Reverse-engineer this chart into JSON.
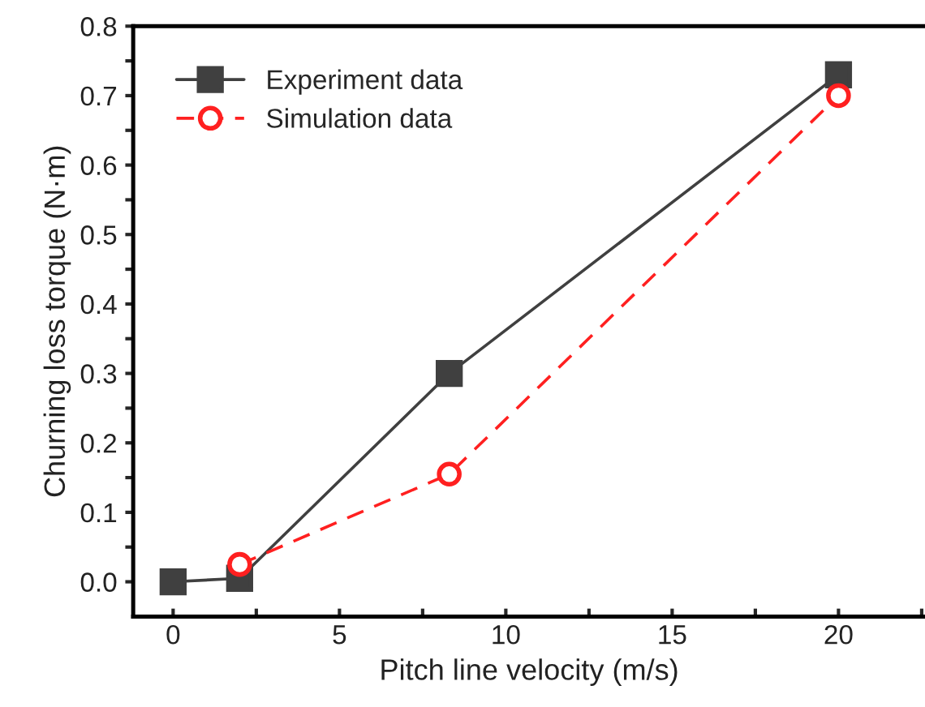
{
  "chart_data": {
    "type": "line",
    "xlabel": "Pitch line velocity (m/s)",
    "ylabel": "Churning loss torque (N·m)",
    "xlim": [
      -1.2,
      22.6
    ],
    "ylim": [
      -0.05,
      0.8
    ],
    "xticks": [
      0,
      {
        "value": 2.5,
        "label": null
      },
      5,
      {
        "value": 7.5,
        "label": null
      },
      10,
      {
        "value": 12.5,
        "label": null
      },
      15,
      {
        "value": 17.5,
        "label": null
      },
      20,
      {
        "value": 22.5,
        "label": null
      }
    ],
    "yticks": [
      {
        "value": 0,
        "label": "0.0"
      },
      {
        "value": 0.05,
        "label": null
      },
      0.1,
      {
        "value": 0.15,
        "label": null
      },
      0.2,
      {
        "value": 0.25,
        "label": null
      },
      0.3,
      {
        "value": 0.35,
        "label": null
      },
      0.4,
      {
        "value": 0.45,
        "label": null
      },
      0.5,
      {
        "value": 0.55,
        "label": null
      },
      0.6,
      {
        "value": 0.65,
        "label": null
      },
      0.7,
      {
        "value": 0.75,
        "label": null
      },
      0.8
    ],
    "legend": "top left",
    "grid": false,
    "series": [
      {
        "name": "Experiment data",
        "color": "#404040",
        "marker": "square",
        "line_style": "solid",
        "x": [
          0,
          2,
          8.3,
          20
        ],
        "values": [
          0,
          0.005,
          0.3,
          0.73
        ]
      },
      {
        "name": "Simulation data",
        "color": "#ff2020",
        "marker": "circle",
        "line_style": "dashed",
        "x": [
          2,
          8.3,
          20
        ],
        "values": [
          0.025,
          0.155,
          0.7
        ]
      }
    ]
  }
}
